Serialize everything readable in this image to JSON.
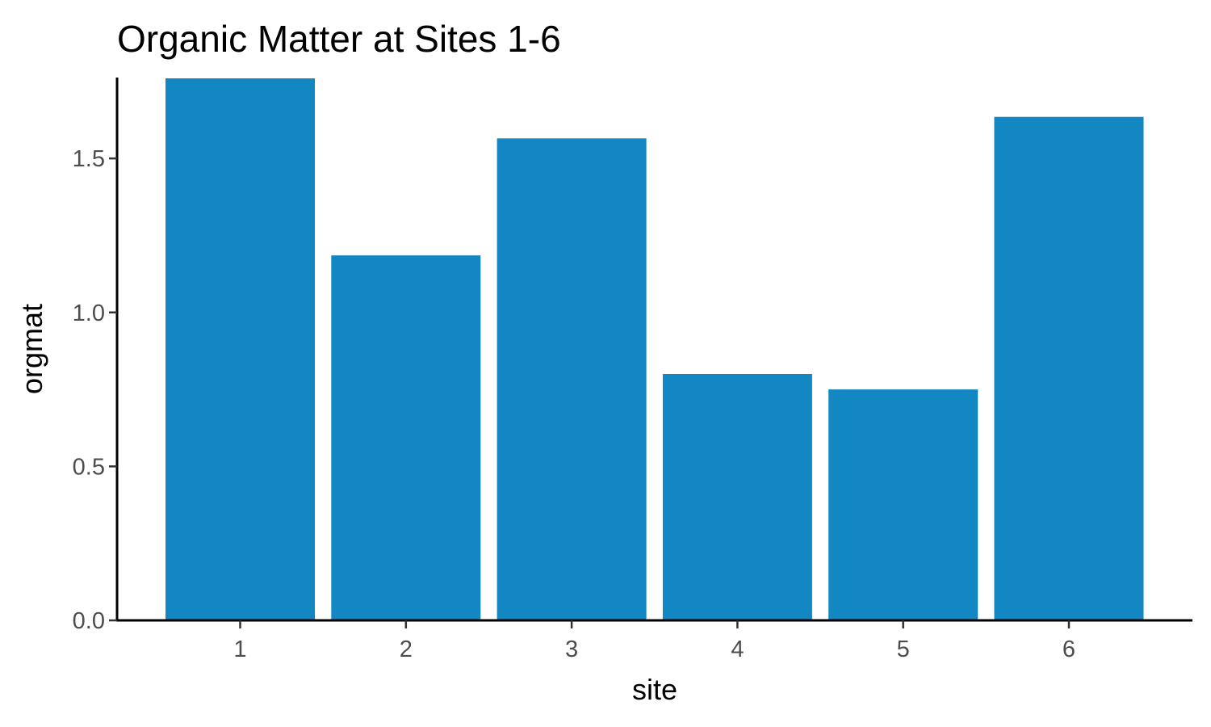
{
  "chart_data": {
    "type": "bar",
    "title": "Organic Matter at Sites 1-6",
    "xlabel": "site",
    "ylabel": "orgmat",
    "categories": [
      "1",
      "2",
      "3",
      "4",
      "5",
      "6"
    ],
    "values": [
      1.76,
      1.185,
      1.565,
      0.8,
      0.75,
      1.635
    ],
    "ylim": [
      0,
      1.76
    ],
    "yticks": [
      0.0,
      0.5,
      1.0,
      1.5
    ],
    "ytick_labels": [
      "0.0",
      "0.5",
      "1.0",
      "1.5"
    ],
    "bar_color": "#1287C2",
    "grid": false,
    "legend": "none"
  }
}
